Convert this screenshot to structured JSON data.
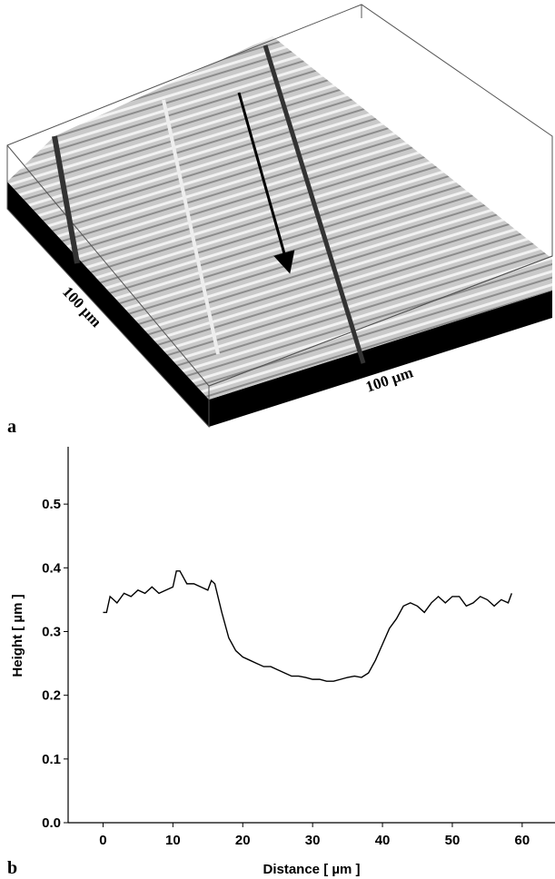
{
  "panel_a": {
    "label": "a",
    "left_scale_label": "100 µm",
    "front_scale_label": "100 µm"
  },
  "panel_b_label": "b",
  "chart_data": {
    "type": "line",
    "x_label": "Distance [ µm ]",
    "y_label": "Height [ µm ]",
    "x": [
      0,
      0.5,
      1,
      1.5,
      2,
      3,
      4,
      5,
      6,
      7,
      8,
      9,
      10,
      10.5,
      11,
      12,
      13,
      14,
      15,
      15.5,
      16,
      17,
      18,
      19,
      20,
      21,
      22,
      23,
      24,
      25,
      26,
      27,
      28,
      29,
      30,
      31,
      32,
      33,
      34,
      35,
      36,
      37,
      38,
      39,
      40,
      41,
      42,
      43,
      44,
      45,
      46,
      47,
      48,
      49,
      50,
      51,
      52,
      53,
      54,
      55,
      56,
      57,
      58,
      58.5
    ],
    "series": [
      {
        "color": "#000000",
        "values": [
          0.33,
          0.33,
          0.355,
          0.35,
          0.345,
          0.36,
          0.355,
          0.365,
          0.36,
          0.37,
          0.36,
          0.365,
          0.37,
          0.395,
          0.395,
          0.375,
          0.375,
          0.37,
          0.365,
          0.38,
          0.375,
          0.33,
          0.29,
          0.27,
          0.26,
          0.255,
          0.25,
          0.245,
          0.245,
          0.24,
          0.235,
          0.23,
          0.23,
          0.228,
          0.225,
          0.225,
          0.222,
          0.222,
          0.225,
          0.228,
          0.23,
          0.228,
          0.235,
          0.255,
          0.28,
          0.305,
          0.32,
          0.34,
          0.345,
          0.34,
          0.33,
          0.345,
          0.355,
          0.345,
          0.355,
          0.355,
          0.34,
          0.345,
          0.355,
          0.35,
          0.34,
          0.35,
          0.345,
          0.36
        ]
      }
    ],
    "xlim": [
      -5,
      64.7
    ],
    "ylim": [
      0,
      0.59
    ],
    "xticks": [
      0,
      10,
      20,
      30,
      40,
      50,
      60
    ],
    "yticks": [
      {
        "value": 0,
        "label": "0.0"
      },
      {
        "value": 0.1,
        "label": "0.1"
      },
      {
        "value": 0.2,
        "label": "0.2"
      },
      {
        "value": 0.3,
        "label": "0.3"
      },
      {
        "value": 0.4,
        "label": "0.4"
      },
      {
        "value": 0.5,
        "label": "0.5"
      }
    ]
  }
}
